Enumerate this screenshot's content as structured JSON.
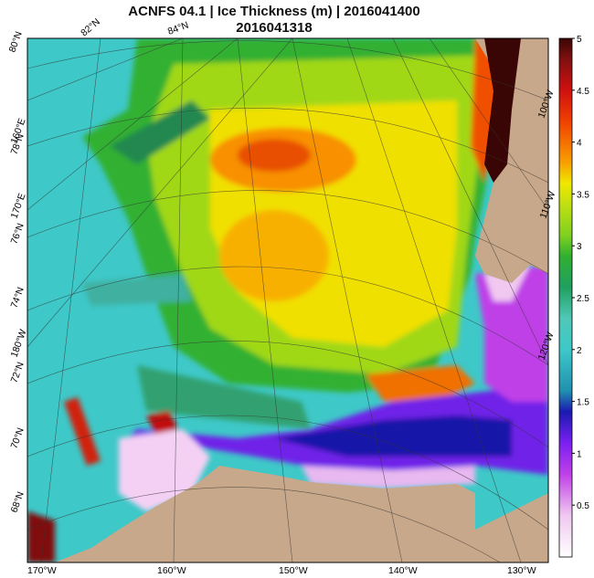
{
  "title": {
    "line1": "ACNFS 04.1  |  Ice Thickness (m)  |  2016041400",
    "line2": "2016041318"
  },
  "colorbar": {
    "min": 0,
    "max": 5,
    "ticks": [
      "5",
      "4.5",
      "4",
      "3.5",
      "3",
      "2.5",
      "2",
      "1.5",
      "1",
      "0.5"
    ],
    "stops": [
      {
        "v": 0.0,
        "c": "#ffffff"
      },
      {
        "v": 0.4,
        "c": "#f0c8f0"
      },
      {
        "v": 0.8,
        "c": "#c040e8"
      },
      {
        "v": 1.1,
        "c": "#7a20f0"
      },
      {
        "v": 1.4,
        "c": "#1a1ab0"
      },
      {
        "v": 1.6,
        "c": "#2090b0"
      },
      {
        "v": 2.0,
        "c": "#3ec8c8"
      },
      {
        "v": 2.3,
        "c": "#50c8b8"
      },
      {
        "v": 2.6,
        "c": "#20a060"
      },
      {
        "v": 2.9,
        "c": "#30b030"
      },
      {
        "v": 3.1,
        "c": "#80d020"
      },
      {
        "v": 3.4,
        "c": "#c0e010"
      },
      {
        "v": 3.6,
        "c": "#f0e800"
      },
      {
        "v": 3.8,
        "c": "#f8a000"
      },
      {
        "v": 4.2,
        "c": "#f04000"
      },
      {
        "v": 4.5,
        "c": "#d01010"
      },
      {
        "v": 4.8,
        "c": "#801010"
      },
      {
        "v": 5.0,
        "c": "#3a0505"
      }
    ]
  },
  "grid_labels": {
    "lon": [
      "170°W",
      "160°W",
      "150°W",
      "140°W",
      "130°W",
      "120°W",
      "110°W",
      "100°W",
      "160°E",
      "170°E",
      "180°W"
    ],
    "lat": [
      "80°N",
      "82°N",
      "84°N",
      "78°N",
      "76°N",
      "74°N",
      "72°N",
      "70°N",
      "68°N"
    ]
  },
  "colors": {
    "land": "#c8a88a",
    "ocean_ice": "#3ec8c8"
  }
}
